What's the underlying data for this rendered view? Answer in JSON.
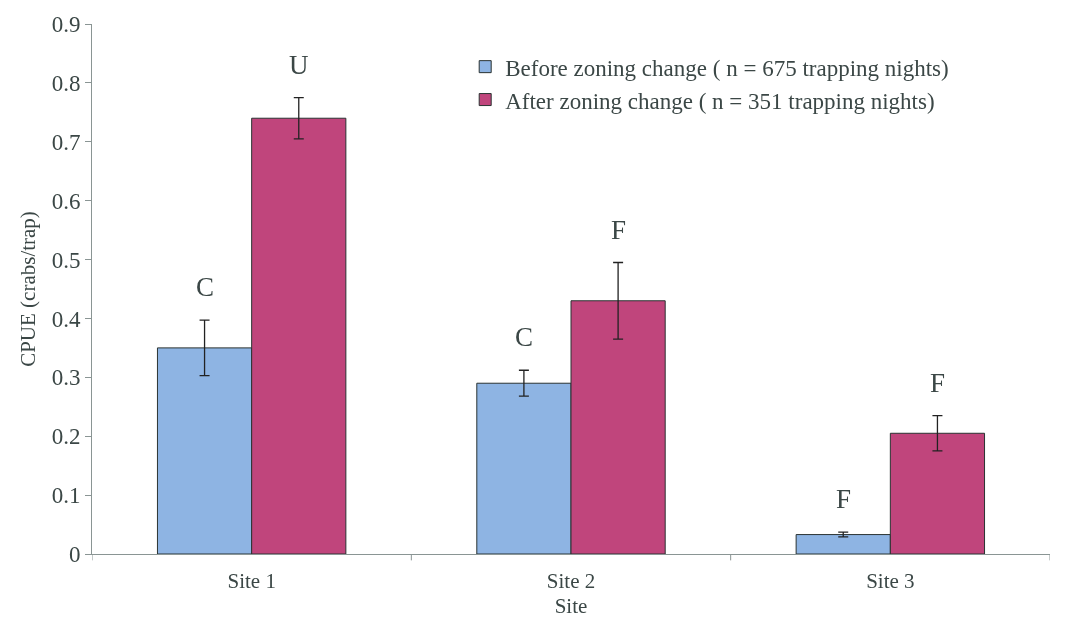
{
  "chart_data": {
    "type": "bar",
    "xlabel": "Site",
    "ylabel": "CPUE (crabs/trap)",
    "categories": [
      "Site 1",
      "Site 2",
      "Site 3"
    ],
    "series": [
      {
        "name": "Before zoning change ( n = 675 trapping nights)",
        "color": "#8eb4e3",
        "values": [
          0.35,
          0.29,
          0.033
        ],
        "errors": [
          0.047,
          0.022,
          0.004
        ],
        "value_labels": [
          "C",
          "C",
          "F"
        ]
      },
      {
        "name": "After zoning change ( n = 351 trapping nights)",
        "color": "#c0457c",
        "values": [
          0.74,
          0.43,
          0.205
        ],
        "errors": [
          0.035,
          0.065,
          0.03
        ],
        "value_labels": [
          "U",
          "F",
          "F"
        ]
      }
    ],
    "ylim": [
      0,
      0.9
    ],
    "yticks": [
      0,
      0.1,
      0.2,
      0.3,
      0.4,
      0.5,
      0.6,
      0.7,
      0.8,
      0.9
    ],
    "legend": "top right"
  }
}
